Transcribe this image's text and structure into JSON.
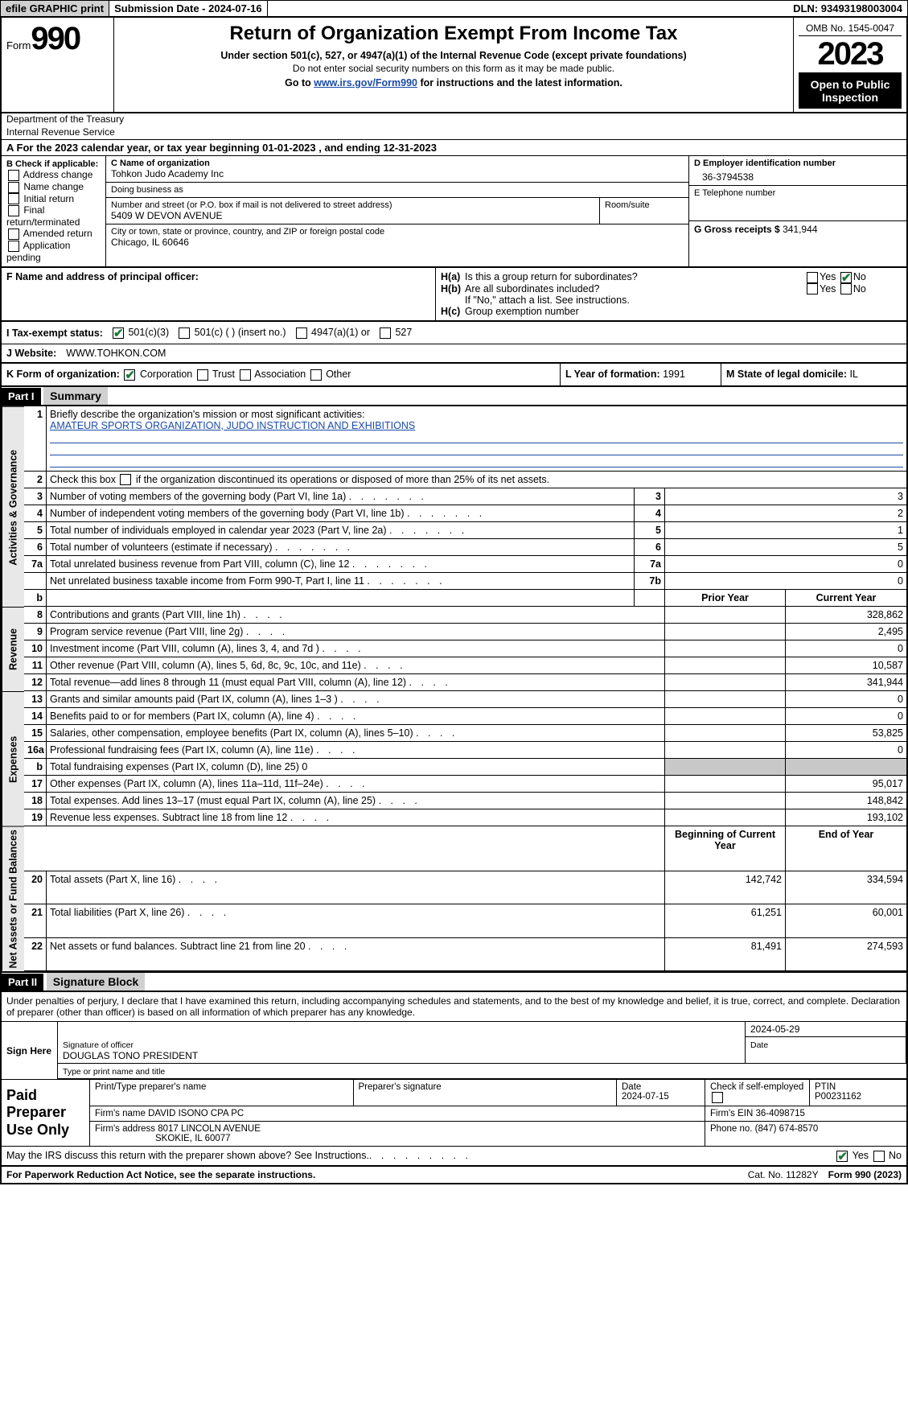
{
  "topbar": {
    "efile": "efile GRAPHIC print",
    "subdate_lbl": "Submission Date - ",
    "subdate": "2024-07-16",
    "dln_lbl": "DLN: ",
    "dln": "93493198003004"
  },
  "header": {
    "form_word": "Form",
    "form_num": "990",
    "title": "Return of Organization Exempt From Income Tax",
    "subtitle": "Under section 501(c), 527, or 4947(a)(1) of the Internal Revenue Code (except private foundations)",
    "ssn_note": "Do not enter social security numbers on this form as it may be made public.",
    "goto_prefix": "Go to ",
    "goto_link": "www.irs.gov/Form990",
    "goto_suffix": " for instructions and the latest information.",
    "omb": "OMB No. 1545-0047",
    "year": "2023",
    "open": "Open to Public Inspection",
    "dept1": "Department of the Treasury",
    "dept2": "Internal Revenue Service"
  },
  "period": {
    "line_a": "A For the 2023 calendar year, or tax year beginning ",
    "begin": "01-01-2023",
    "mid": " , and ending ",
    "end": "12-31-2023"
  },
  "sectionB": {
    "title": "B Check if applicable:",
    "opts": [
      "Address change",
      "Name change",
      "Initial return",
      "Final return/terminated",
      "Amended return",
      "Application pending"
    ]
  },
  "sectionC": {
    "name_lbl": "C Name of organization",
    "name": "Tohkon Judo Academy Inc",
    "dba_lbl": "Doing business as",
    "dba": "",
    "street_lbl": "Number and street (or P.O. box if mail is not delivered to street address)",
    "street": "5409 W DEVON AVENUE",
    "room_lbl": "Room/suite",
    "room": "",
    "city_lbl": "City or town, state or province, country, and ZIP or foreign postal code",
    "city": "Chicago, IL  60646"
  },
  "sectionD": {
    "ein_lbl": "D Employer identification number",
    "ein": "36-3794538",
    "tel_lbl": "E Telephone number",
    "tel": "",
    "gross_lbl": "G Gross receipts $ ",
    "gross": "341,944"
  },
  "sectionF": {
    "lbl": "F  Name and address of principal officer:",
    "val": ""
  },
  "sectionH": {
    "ha_lbl": "Is this a group return for subordinates?",
    "ha_yes": false,
    "ha_no": true,
    "hb_lbl": "Are all subordinates included?",
    "hb_yes": false,
    "hb_no": false,
    "hb_note": "If \"No,\" attach a list. See instructions.",
    "hc_lbl": "Group exemption number",
    "hc_val": ""
  },
  "taxStatus": {
    "lbl": "I   Tax-exempt status:",
    "c3": true,
    "c3_lbl": "501(c)(3)",
    "c_other": false,
    "c_other_lbl": "501(c) (  ) (insert no.)",
    "a4947": false,
    "a4947_lbl": "4947(a)(1) or",
    "s527": false,
    "s527_lbl": "527"
  },
  "website": {
    "lbl": "J   Website:",
    "val": "WWW.TOHKON.COM"
  },
  "rowK": {
    "lbl": "K Form of organization:",
    "corp": true,
    "corp_lbl": "Corporation",
    "trust": false,
    "trust_lbl": "Trust",
    "assoc": false,
    "assoc_lbl": "Association",
    "other": false,
    "other_lbl": "Other"
  },
  "rowL": {
    "lbl": "L Year of formation: ",
    "val": "1991"
  },
  "rowM": {
    "lbl": "M State of legal domicile: ",
    "val": "IL"
  },
  "partI": {
    "hdr": "Part I",
    "title": "Summary"
  },
  "summary": {
    "line1_lbl": "Briefly describe the organization's mission or most significant activities:",
    "line1_val": "AMATEUR SPORTS ORGANIZATION, JUDO INSTRUCTION AND EXHIBITIONS",
    "line2_lbl": "Check this box      if the organization discontinued its operations or disposed of more than 25% of its net assets.",
    "rows_gov": [
      {
        "n": "3",
        "lbl": "Number of voting members of the governing body (Part VI, line 1a)",
        "box": "3",
        "val": "3"
      },
      {
        "n": "4",
        "lbl": "Number of independent voting members of the governing body (Part VI, line 1b)",
        "box": "4",
        "val": "2"
      },
      {
        "n": "5",
        "lbl": "Total number of individuals employed in calendar year 2023 (Part V, line 2a)",
        "box": "5",
        "val": "1"
      },
      {
        "n": "6",
        "lbl": "Total number of volunteers (estimate if necessary)",
        "box": "6",
        "val": "5"
      },
      {
        "n": "7a",
        "lbl": "Total unrelated business revenue from Part VIII, column (C), line 12",
        "box": "7a",
        "val": "0"
      },
      {
        "n": "",
        "lbl": "Net unrelated business taxable income from Form 990-T, Part I, line 11",
        "box": "7b",
        "val": "0"
      }
    ],
    "col_prior": "Prior Year",
    "col_current": "Current Year",
    "rows_rev": [
      {
        "n": "8",
        "lbl": "Contributions and grants (Part VIII, line 1h)",
        "prior": "",
        "curr": "328,862"
      },
      {
        "n": "9",
        "lbl": "Program service revenue (Part VIII, line 2g)",
        "prior": "",
        "curr": "2,495"
      },
      {
        "n": "10",
        "lbl": "Investment income (Part VIII, column (A), lines 3, 4, and 7d )",
        "prior": "",
        "curr": "0"
      },
      {
        "n": "11",
        "lbl": "Other revenue (Part VIII, column (A), lines 5, 6d, 8c, 9c, 10c, and 11e)",
        "prior": "",
        "curr": "10,587"
      },
      {
        "n": "12",
        "lbl": "Total revenue—add lines 8 through 11 (must equal Part VIII, column (A), line 12)",
        "prior": "",
        "curr": "341,944"
      }
    ],
    "rows_exp": [
      {
        "n": "13",
        "lbl": "Grants and similar amounts paid (Part IX, column (A), lines 1–3 )",
        "prior": "",
        "curr": "0"
      },
      {
        "n": "14",
        "lbl": "Benefits paid to or for members (Part IX, column (A), line 4)",
        "prior": "",
        "curr": "0"
      },
      {
        "n": "15",
        "lbl": "Salaries, other compensation, employee benefits (Part IX, column (A), lines 5–10)",
        "prior": "",
        "curr": "53,825"
      },
      {
        "n": "16a",
        "lbl": "Professional fundraising fees (Part IX, column (A), line 11e)",
        "prior": "",
        "curr": "0"
      },
      {
        "n": "b",
        "lbl": "Total fundraising expenses (Part IX, column (D), line 25) 0",
        "prior": "SHADE",
        "curr": "SHADE"
      },
      {
        "n": "17",
        "lbl": "Other expenses (Part IX, column (A), lines 11a–11d, 11f–24e)",
        "prior": "",
        "curr": "95,017"
      },
      {
        "n": "18",
        "lbl": "Total expenses. Add lines 13–17 (must equal Part IX, column (A), line 25)",
        "prior": "",
        "curr": "148,842"
      },
      {
        "n": "19",
        "lbl": "Revenue less expenses. Subtract line 18 from line 12",
        "prior": "",
        "curr": "193,102"
      }
    ],
    "col_begin": "Beginning of Current Year",
    "col_end": "End of Year",
    "rows_net": [
      {
        "n": "20",
        "lbl": "Total assets (Part X, line 16)",
        "prior": "142,742",
        "curr": "334,594"
      },
      {
        "n": "21",
        "lbl": "Total liabilities (Part X, line 26)",
        "prior": "61,251",
        "curr": "60,001"
      },
      {
        "n": "22",
        "lbl": "Net assets or fund balances. Subtract line 21 from line 20",
        "prior": "81,491",
        "curr": "274,593"
      }
    ],
    "side_gov": "Activities & Governance",
    "side_rev": "Revenue",
    "side_exp": "Expenses",
    "side_net": "Net Assets or Fund Balances"
  },
  "partII": {
    "hdr": "Part II",
    "title": "Signature Block"
  },
  "sig": {
    "decl": "Under penalties of perjury, I declare that I have examined this return, including accompanying schedules and statements, and to the best of my knowledge and belief, it is true, correct, and complete. Declaration of preparer (other than officer) is based on all information of which preparer has any knowledge.",
    "sign_here": "Sign Here",
    "sig_officer_lbl": "Signature of officer",
    "officer_name": "DOUGLAS TONO PRESIDENT",
    "name_title_lbl": "Type or print name and title",
    "date_lbl": "Date",
    "sign_date": "2024-05-29"
  },
  "paid": {
    "lbl": "Paid Preparer Use Only",
    "prep_name_lbl": "Print/Type preparer's name",
    "prep_name": "",
    "prep_sig_lbl": "Preparer's signature",
    "prep_date_lbl": "Date",
    "prep_date": "2024-07-15",
    "self_emp_lbl": "Check       if self-employed",
    "ptin_lbl": "PTIN",
    "ptin": "P00231162",
    "firm_name_lbl": "Firm's name   ",
    "firm_name": "DAVID ISONO CPA PC",
    "firm_ein_lbl": "Firm's EIN  ",
    "firm_ein": "36-4098715",
    "firm_addr_lbl": "Firm's address ",
    "firm_addr1": "8017 LINCOLN AVENUE",
    "firm_addr2": "SKOKIE, IL  60077",
    "phone_lbl": "Phone no. ",
    "phone": "(847) 674-8570"
  },
  "discuss": {
    "lbl": "May the IRS discuss this return with the preparer shown above? See Instructions.",
    "yes": true,
    "no": false
  },
  "footer": {
    "pra": "For Paperwork Reduction Act Notice, see the separate instructions.",
    "cat": "Cat. No. 11282Y",
    "form": "Form 990 (2023)"
  },
  "style": {
    "accent": "#1a4ba8",
    "check_color": "#1a7a3a",
    "shade_bg": "#c8c8c8",
    "sidebar_bg": "#e8e8e8"
  }
}
